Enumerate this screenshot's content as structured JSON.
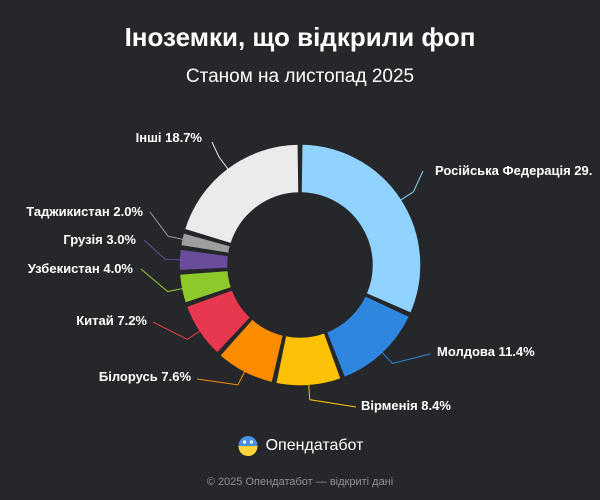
{
  "title": "Іноземки, що відкрили фоп",
  "subtitle": "Станом на листопад 2025",
  "brand": {
    "name": "Опендатабот",
    "logo": "opendatabot-logo-icon"
  },
  "footer": "© 2025 Опендатабот — відкриті дані",
  "chart_data": {
    "type": "pie",
    "variant": "donut",
    "title": "Іноземки, що відкрили фоп",
    "subtitle": "Станом на листопад 2025",
    "categories": [
      "Російська Федерація",
      "Молдова",
      "Вірменія",
      "Білорусь",
      "Китай",
      "Узбекистан",
      "Грузія",
      "Таджикистан",
      "Інші"
    ],
    "values": [
      29.0,
      11.4,
      8.4,
      7.6,
      7.2,
      4.0,
      3.0,
      2.0,
      18.7
    ],
    "labels": [
      "Російська Федерація 29.",
      "Молдова 11.4%",
      "Вірменія 8.4%",
      "Білорусь 7.6%",
      "Китай 7.2%",
      "Узбекистан 4.0%",
      "Грузія 3.0%",
      "Таджикистан 2.0%",
      "Інші 18.7%"
    ],
    "colors": [
      "#8fd3fe",
      "#2e86de",
      "#fdc206",
      "#fb8c00",
      "#e8384f",
      "#8dc92b",
      "#6a4c9c",
      "#9e9e9e",
      "#ebebeb"
    ],
    "legend": "none"
  }
}
